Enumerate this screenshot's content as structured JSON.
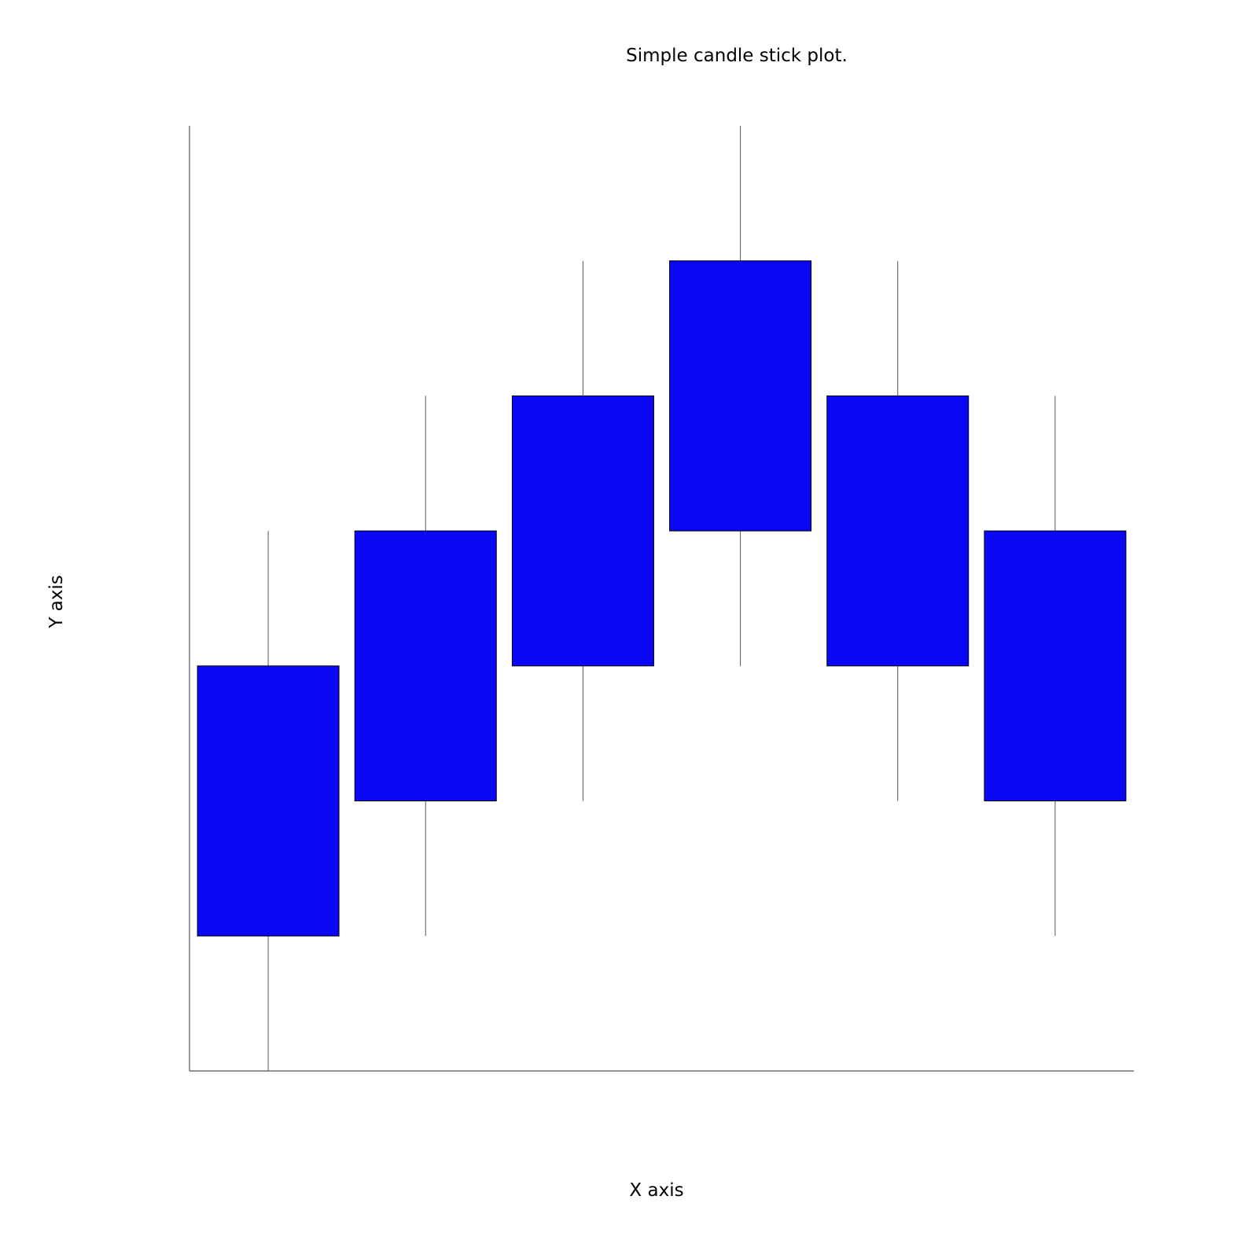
{
  "chart_data": {
    "type": "candlestick",
    "title": "Simple candle stick plot.",
    "xlabel": "X axis",
    "ylabel": "Y axis",
    "x": [
      1,
      2,
      3,
      4,
      5,
      6
    ],
    "candles": [
      {
        "x": 1,
        "low": 0,
        "open": 1,
        "close": 3,
        "high": 4
      },
      {
        "x": 2,
        "low": 1,
        "open": 2,
        "close": 4,
        "high": 5
      },
      {
        "x": 3,
        "low": 2,
        "open": 3,
        "close": 5,
        "high": 6
      },
      {
        "x": 4,
        "low": 3,
        "open": 4,
        "close": 6,
        "high": 7
      },
      {
        "x": 5,
        "low": 2,
        "open": 3,
        "close": 5,
        "high": 6
      },
      {
        "x": 6,
        "low": 1,
        "open": 2,
        "close": 4,
        "high": 5
      }
    ],
    "xlim": [
      0.5,
      6.5
    ],
    "ylim": [
      0,
      7
    ],
    "grid": false,
    "colors": {
      "body_fill": "#0a06f6",
      "body_stroke": "#000000",
      "wick": "#555555",
      "axis": "#555555"
    }
  }
}
